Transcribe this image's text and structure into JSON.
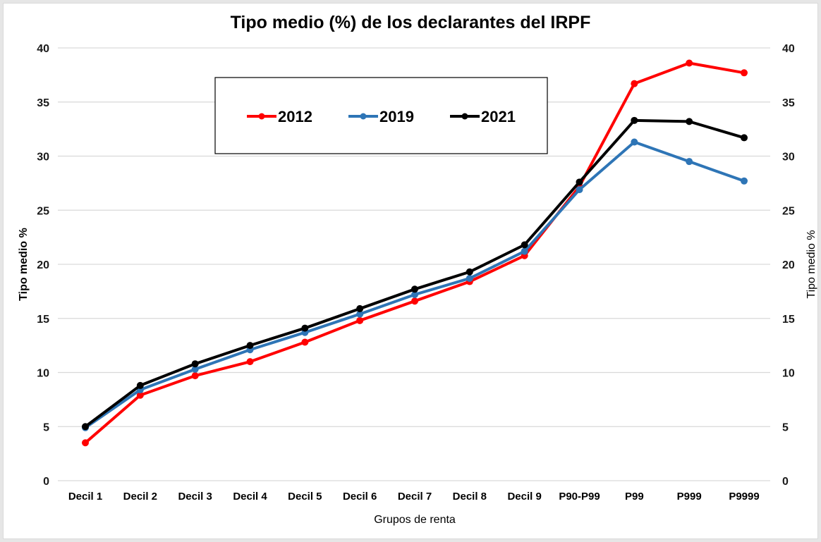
{
  "chart_data": {
    "type": "line",
    "title": "Tipo medio (%) de los declarantes del IRPF",
    "xlabel": "Grupos de renta",
    "ylabel": "Tipo medio %",
    "ylabel_right": "Tipo medio %",
    "ylim": [
      0,
      40
    ],
    "yticks": [
      0,
      5,
      10,
      15,
      20,
      25,
      30,
      35,
      40
    ],
    "grid": true,
    "legend_position": "top-center",
    "categories": [
      "Decil 1",
      "Decil 2",
      "Decil 3",
      "Decil 4",
      "Decil 5",
      "Decil 6",
      "Decil 7",
      "Decil 8",
      "Decil 9",
      "P90-P99",
      "P99",
      "P999",
      "P9999"
    ],
    "series": [
      {
        "name": "2012",
        "color": "#ff0000",
        "values": [
          3.5,
          7.9,
          9.7,
          11.0,
          12.8,
          14.8,
          16.6,
          18.4,
          20.8,
          27.2,
          36.7,
          38.6,
          37.7
        ]
      },
      {
        "name": "2019",
        "color": "#2e75b6",
        "values": [
          4.9,
          8.4,
          10.3,
          12.1,
          13.7,
          15.4,
          17.2,
          18.7,
          21.2,
          26.9,
          31.3,
          29.5,
          27.7
        ]
      },
      {
        "name": "2021",
        "color": "#000000",
        "values": [
          5.0,
          8.8,
          10.8,
          12.5,
          14.1,
          15.9,
          17.7,
          19.3,
          21.8,
          27.6,
          33.3,
          33.2,
          31.7
        ]
      }
    ]
  }
}
